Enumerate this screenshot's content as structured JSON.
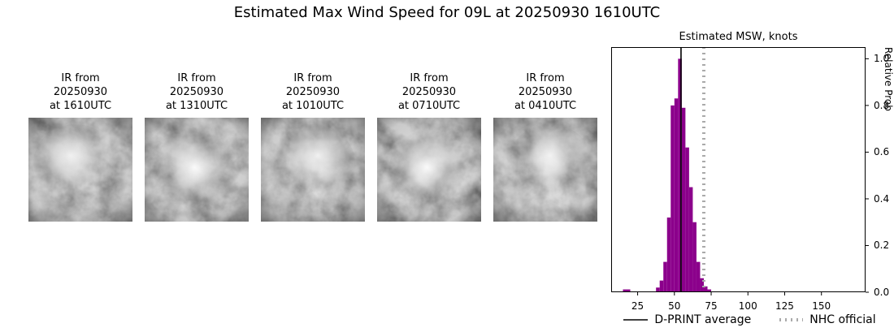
{
  "title": "Estimated Max Wind Speed for 09L at 20250930 1610UTC",
  "ir_images": [
    {
      "caption": "IR from\n20250930\nat 1610UTC"
    },
    {
      "caption": "IR from\n20250930\nat 1310UTC"
    },
    {
      "caption": "IR from\n20250930\nat 1010UTC"
    },
    {
      "caption": "IR from\n20250930\nat 0710UTC"
    },
    {
      "caption": "IR from\n20250930\nat 0410UTC"
    }
  ],
  "chart_data": {
    "type": "bar",
    "title": "Estimated MSW, knots",
    "ylabel": "Relative Prob",
    "xlim": [
      7,
      180
    ],
    "ylim": [
      0,
      1.05
    ],
    "xticks": [
      25,
      50,
      75,
      100,
      125,
      150
    ],
    "yticks": [
      0.0,
      0.2,
      0.4,
      0.6,
      0.8,
      1.0
    ],
    "grid": false,
    "legend_position": "bottom",
    "bin_width": 2.5,
    "bar_color": "#8B008B",
    "dprint_color": "#000000",
    "nhc_color": "#aaaaaa",
    "bins": [
      15,
      17.5,
      37.5,
      40,
      42.5,
      45,
      47.5,
      50,
      52.5,
      55,
      57.5,
      60,
      62.5,
      65,
      67.5,
      70,
      72.5
    ],
    "values": [
      0.012,
      0.012,
      0.02,
      0.05,
      0.13,
      0.32,
      0.8,
      0.83,
      1.0,
      0.79,
      0.62,
      0.45,
      0.3,
      0.13,
      0.06,
      0.025,
      0.012
    ],
    "dprint_average": 54.5,
    "nhc_official": 70,
    "legend": [
      {
        "label": "D-PRINT average",
        "style": "solid-black-line"
      },
      {
        "label": "NHC official",
        "style": "dotted-gray-line"
      }
    ]
  }
}
